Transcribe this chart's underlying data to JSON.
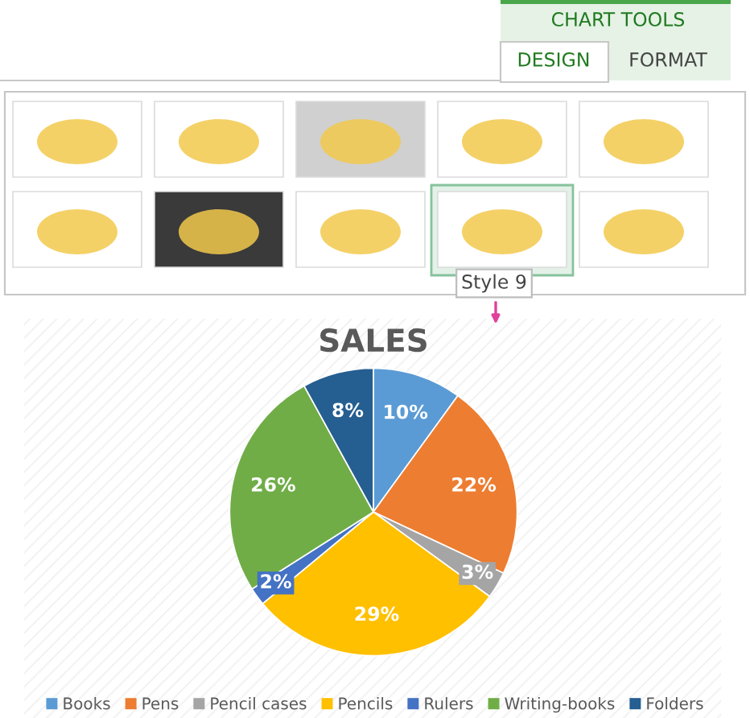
{
  "chart_data": {
    "type": "pie",
    "title": "SALES",
    "categories": [
      "Books",
      "Pens",
      "Pencil cases",
      "Pencils",
      "Rulers",
      "Writing-books",
      "Folders"
    ],
    "values": [
      10,
      22,
      3,
      29,
      2,
      26,
      8
    ],
    "colors": [
      "#5b9bd5",
      "#ed7d31",
      "#a5a5a5",
      "#ffc000",
      "#4472c4",
      "#70ad47",
      "#255e91"
    ],
    "value_labels": [
      "10%",
      "22%",
      "3%",
      "29%",
      "2%",
      "26%",
      "8%"
    ],
    "legend": "bottom",
    "annotations": [
      "CHART TOOLS",
      "DESIGN",
      "FORMAT",
      "Style 9"
    ]
  }
}
